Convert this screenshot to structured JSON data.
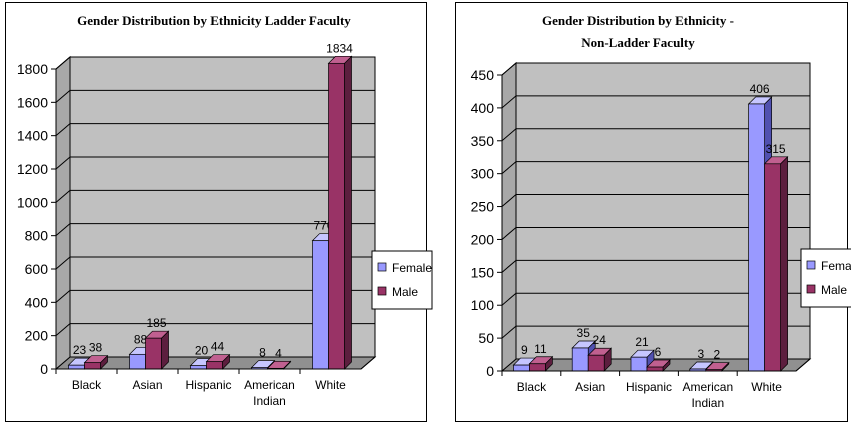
{
  "colors": {
    "female_front": "#9999ff",
    "female_top": "#c6c6ff",
    "female_side": "#5050b0",
    "male_front": "#993366",
    "male_top": "#c06090",
    "male_side": "#5c1e3e",
    "wall": "#c0c0c0",
    "floor": "#909090"
  },
  "chart_data": [
    {
      "type": "bar",
      "title": "Gender Distribution by Ethnicity Ladder Faculty",
      "categories": [
        "Black",
        "Asian",
        "Hispanic",
        "American Indian",
        "White"
      ],
      "series": [
        {
          "name": "Female",
          "values": [
            23,
            88,
            20,
            8,
            770
          ]
        },
        {
          "name": "Male",
          "values": [
            38,
            185,
            44,
            4,
            1834
          ]
        }
      ],
      "ylim": [
        0,
        1800
      ],
      "yticks": [
        "0",
        "200",
        "400",
        "600",
        "800",
        "1000",
        "1200",
        "1400",
        "1600",
        "1800"
      ],
      "grid": true,
      "legend": "right"
    },
    {
      "type": "bar",
      "title": "Gender Distribution by Ethnicity - Non-Ladder Faculty",
      "categories": [
        "Black",
        "Asian",
        "Hispanic",
        "American Indian",
        "White"
      ],
      "series": [
        {
          "name": "Female",
          "values": [
            9,
            35,
            21,
            3,
            406
          ]
        },
        {
          "name": "Male",
          "values": [
            11,
            24,
            6,
            2,
            315
          ]
        }
      ],
      "ylim": [
        0,
        450
      ],
      "yticks": [
        "0",
        "50",
        "100",
        "150",
        "200",
        "250",
        "300",
        "350",
        "400",
        "450"
      ],
      "grid": true,
      "legend": "right"
    }
  ]
}
